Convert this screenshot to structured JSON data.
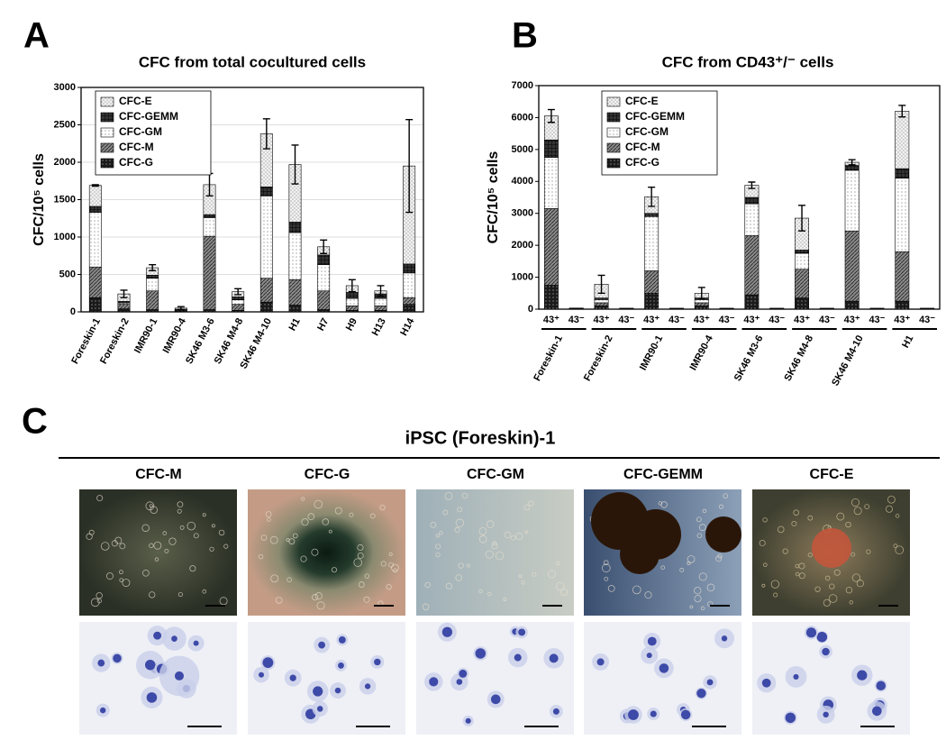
{
  "chart_data": [
    {
      "type": "bar",
      "stacked": true,
      "panel": "A",
      "title": "CFC from total cocultured cells",
      "y_label": "CFC/10⁵ cells",
      "categories": [
        "Foreskin-1",
        "Foreskin-2",
        "IMR90-1",
        "IMR90-4",
        "SK46 M3-6",
        "SK46 M4-8",
        "SK46 M4-10",
        "H1",
        "H7",
        "H9",
        "H13",
        "H14"
      ],
      "series": [
        {
          "name": "CFC-G",
          "color": "#1a1a1a",
          "values": [
            190,
            40,
            30,
            10,
            30,
            20,
            130,
            90,
            30,
            20,
            20,
            100
          ]
        },
        {
          "name": "CFC-M",
          "color": "#8a8a8a",
          "values": [
            410,
            60,
            250,
            10,
            980,
            80,
            320,
            340,
            250,
            60,
            60,
            90
          ]
        },
        {
          "name": "CFC-GM",
          "color": "#ffffff",
          "values": [
            730,
            20,
            170,
            10,
            250,
            60,
            1100,
            630,
            350,
            100,
            100,
            330
          ]
        },
        {
          "name": "CFC-GEMM",
          "color": "#333333",
          "values": [
            80,
            20,
            40,
            5,
            40,
            40,
            120,
            140,
            130,
            80,
            60,
            120
          ]
        },
        {
          "name": "CFC-E",
          "color": "#f2f2f2",
          "values": [
            280,
            100,
            100,
            15,
            400,
            70,
            710,
            770,
            110,
            90,
            40,
            1310
          ],
          "errors": [
            10,
            50,
            40,
            20,
            150,
            40,
            200,
            260,
            90,
            80,
            70,
            620
          ]
        }
      ],
      "ylim": [
        0,
        3000
      ],
      "yticks": [
        0,
        500,
        1000,
        1500,
        2000,
        2500,
        3000
      ],
      "grid": true,
      "legend": "top-left"
    },
    {
      "type": "bar",
      "stacked": true,
      "panel": "B",
      "title": "CFC from CD43⁺/⁻ cells",
      "y_label": "CFC/10⁵ cells",
      "categories": [
        "43⁺",
        "43⁻",
        "43⁺",
        "43⁻",
        "43⁺",
        "43⁻",
        "43⁺",
        "43⁻",
        "43⁺",
        "43⁻",
        "43⁺",
        "43⁻",
        "43⁺",
        "43⁻",
        "43⁺",
        "43⁻"
      ],
      "groups": [
        "Foreskin-1",
        "Foreskin-2",
        "IMR90-1",
        "IMR90-4",
        "SK46 M3-6",
        "SK46 M4-8",
        "SK46 M4-10",
        "H1"
      ],
      "series": [
        {
          "name": "CFC-G",
          "color": "#1a1a1a",
          "values": [
            750,
            10,
            100,
            10,
            500,
            10,
            100,
            10,
            450,
            10,
            350,
            10,
            250,
            10,
            250,
            10
          ]
        },
        {
          "name": "CFC-M",
          "color": "#8a8a8a",
          "values": [
            2400,
            10,
            100,
            5,
            700,
            5,
            100,
            5,
            1850,
            5,
            900,
            5,
            2200,
            5,
            1550,
            5
          ]
        },
        {
          "name": "CFC-GM",
          "color": "#ffffff",
          "values": [
            1600,
            5,
            100,
            5,
            1700,
            5,
            100,
            5,
            1000,
            5,
            500,
            5,
            1900,
            5,
            2300,
            5
          ]
        },
        {
          "name": "CFC-GEMM",
          "color": "#333333",
          "values": [
            550,
            5,
            50,
            5,
            100,
            5,
            50,
            5,
            200,
            5,
            100,
            5,
            150,
            5,
            300,
            5
          ]
        },
        {
          "name": "CFC-E",
          "color": "#f2f2f2",
          "values": [
            750,
            5,
            430,
            5,
            520,
            5,
            150,
            5,
            380,
            5,
            1000,
            5,
            100,
            5,
            1800,
            5
          ],
          "errors": [
            200,
            null,
            280,
            null,
            300,
            null,
            180,
            null,
            100,
            null,
            400,
            null,
            80,
            null,
            180,
            null
          ]
        }
      ],
      "ylim": [
        0,
        7000
      ],
      "yticks": [
        0,
        1000,
        2000,
        3000,
        4000,
        5000,
        6000,
        7000
      ],
      "grid": false,
      "legend": "top-left"
    }
  ],
  "panel_c": {
    "label": "C",
    "title": "iPSC (Foreskin)-1",
    "columns": [
      "CFC-M",
      "CFC-G",
      "CFC-GM",
      "CFC-GEMM",
      "CFC-E"
    ]
  }
}
